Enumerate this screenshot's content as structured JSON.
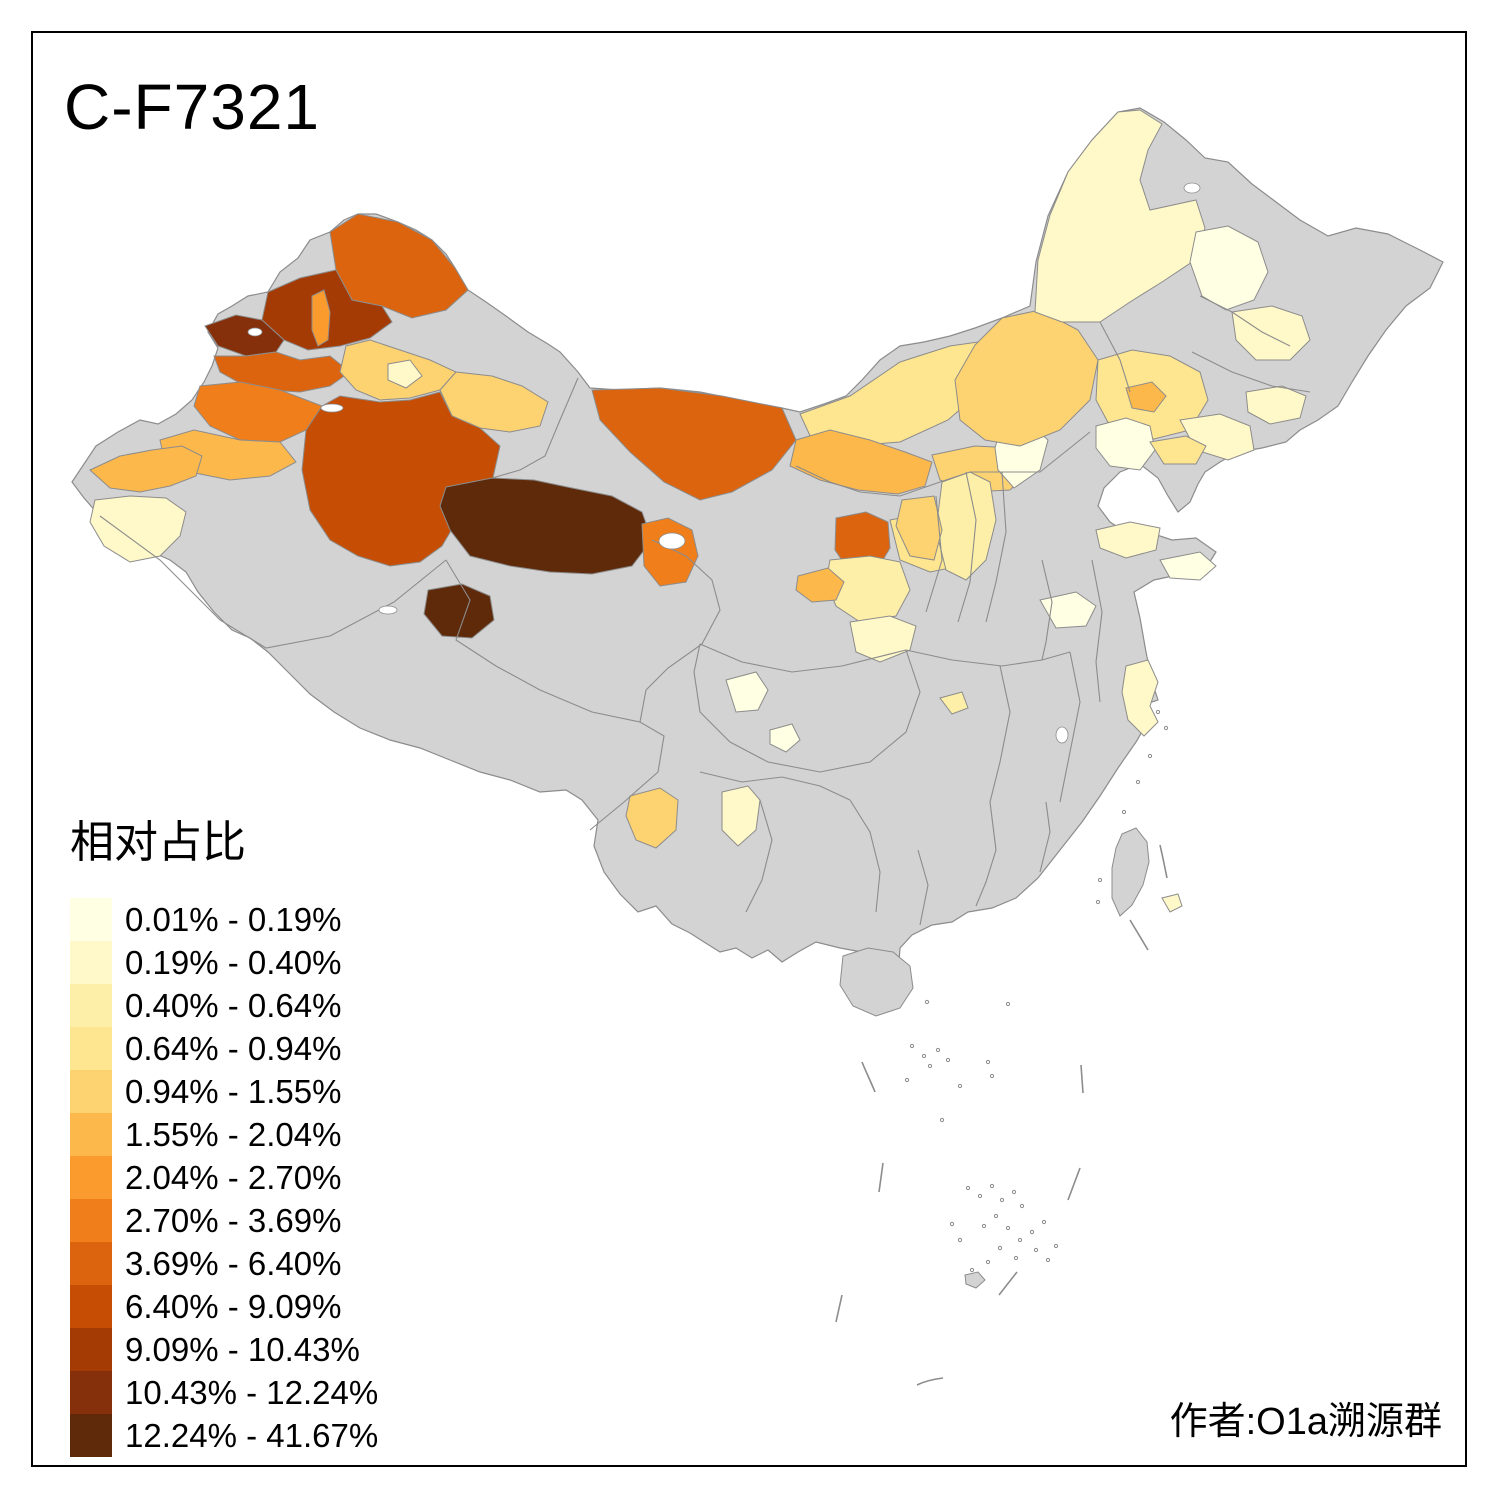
{
  "title": "C-F7321",
  "attribution": "作者:O1a溯源群",
  "legend": {
    "title": "相对占比",
    "classes": [
      {
        "label": "0.01% - 0.19%",
        "color": "#FFFFE3"
      },
      {
        "label": "0.19% - 0.40%",
        "color": "#FFF8C8"
      },
      {
        "label": "0.40% - 0.64%",
        "color": "#FEEFA8"
      },
      {
        "label": "0.64% - 0.94%",
        "color": "#FEE590"
      },
      {
        "label": "0.94% - 1.55%",
        "color": "#FDD271"
      },
      {
        "label": "1.55% - 2.04%",
        "color": "#FDB84C"
      },
      {
        "label": "2.04% - 2.70%",
        "color": "#FC9B2D"
      },
      {
        "label": "2.70% - 3.69%",
        "color": "#F07E1A"
      },
      {
        "label": "3.69% - 6.40%",
        "color": "#DD640E"
      },
      {
        "label": "6.40% - 9.09%",
        "color": "#C54E04"
      },
      {
        "label": "9.09% - 10.43%",
        "color": "#A53B04"
      },
      {
        "label": "10.43% - 12.24%",
        "color": "#85300A"
      },
      {
        "label": "12.24% - 41.67%",
        "color": "#5E2A0A"
      }
    ]
  },
  "map": {
    "no_data_color": "#D3D3D3",
    "border_color": "#8C8C8C",
    "regions": {
      "altay": 9,
      "tacheng": 11,
      "bortala": 12,
      "kuytun_strip": 7,
      "ili": 9,
      "changji": 5,
      "urumqi": 2,
      "turpan_hami": 5,
      "bayingolin": 10,
      "aksu": 8,
      "kashgar_north": 6,
      "kizilsu": 6,
      "kashgar": 2,
      "haixi": 13,
      "tanggula": 13,
      "qinghai_lake_east": 8,
      "ejina": 9,
      "bayannur": 6,
      "hohhot_baotou": 5,
      "mongolia_border_band": 4,
      "alxa_white": 1,
      "wuzhong": 9,
      "ordos_pale": 4,
      "xilingol": 5,
      "chifeng": 4,
      "tongliao_spot": 6,
      "hulunbuir": 2,
      "heihe": 1,
      "harbin": 2,
      "jilin_pale": 2,
      "liaoning_pale": 2,
      "beijing": 1,
      "tangshan": 4,
      "shanxi_band": 3,
      "shaanxi_north": 5,
      "ningxia_east": 3,
      "tianshui": 2,
      "lanzhou": 6,
      "shandong_w": 2,
      "shandong_e": 1,
      "henan_patch": 1,
      "jiangsu_coast": 2,
      "sichuan_cream": 1,
      "sichuan_cream2": 1,
      "hubei_tiny": 3,
      "dali": 5,
      "liupanshui": 2,
      "shenzhen": 2
    }
  }
}
